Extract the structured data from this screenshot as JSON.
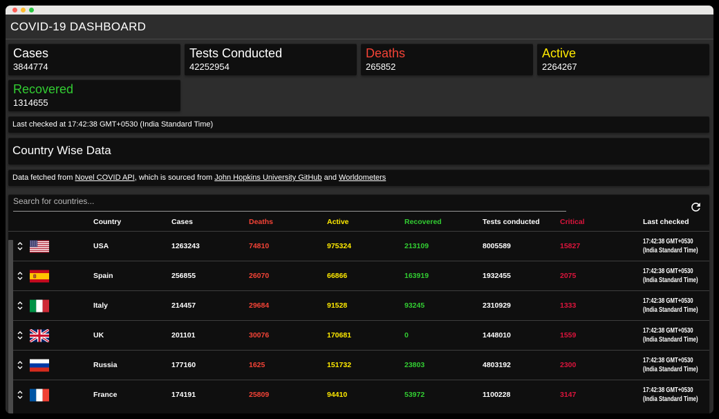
{
  "titlebar": {
    "dots": [
      {
        "name": "close",
        "color": "#ff5f57"
      },
      {
        "name": "minimize",
        "color": "#febc2e"
      },
      {
        "name": "zoom",
        "color": "#28c840"
      }
    ]
  },
  "header": {
    "title": "COVID-19 DASHBOARD"
  },
  "palette": {
    "red": "#f44336",
    "yellow": "#ffea00",
    "green": "#32cd32",
    "crimson": "#dc143c",
    "white": "#ffffff"
  },
  "stats": [
    {
      "id": "cases",
      "label": "Cases",
      "value": "3844774",
      "color": "#ffffff"
    },
    {
      "id": "tests",
      "label": "Tests Conducted",
      "value": "42252954",
      "color": "#ffffff"
    },
    {
      "id": "deaths",
      "label": "Deaths",
      "value": "265852",
      "color": "#f44336"
    },
    {
      "id": "active",
      "label": "Active",
      "value": "2264267",
      "color": "#ffea00"
    },
    {
      "id": "recovered",
      "label": "Recovered",
      "value": "1314655",
      "color": "#32cd32"
    }
  ],
  "last_checked_bar": {
    "text": "Last checked at 17:42:38 GMT+0530 (India Standard Time)"
  },
  "section": {
    "title": "Country Wise Data"
  },
  "source_note": {
    "segments": [
      {
        "text": "Data fetched from ",
        "link": false
      },
      {
        "text": "Novel COVID API",
        "link": true
      },
      {
        "text": ", which is sourced from ",
        "link": false
      },
      {
        "text": "John Hopkins University GitHub",
        "link": true
      },
      {
        "text": " and ",
        "link": false
      },
      {
        "text": "Worldometers",
        "link": true
      }
    ]
  },
  "table": {
    "search_placeholder": "Search for countries...",
    "refresh_icon": "refresh-icon",
    "columns": [
      {
        "key": "country",
        "label": "Country",
        "color": "#ffffff"
      },
      {
        "key": "cases",
        "label": "Cases",
        "color": "#ffffff"
      },
      {
        "key": "deaths",
        "label": "Deaths",
        "color": "#f44336"
      },
      {
        "key": "active",
        "label": "Active",
        "color": "#ffea00"
      },
      {
        "key": "recovered",
        "label": "Recovered",
        "color": "#32cd32"
      },
      {
        "key": "tests",
        "label": "Tests conducted",
        "color": "#ffffff"
      },
      {
        "key": "critical",
        "label": "Critical",
        "color": "#dc143c"
      },
      {
        "key": "last",
        "label": "Last checked",
        "color": "#ffffff"
      }
    ],
    "rows": [
      {
        "flag": "us",
        "country": "USA",
        "cases": "1263243",
        "deaths": "74810",
        "active": "975324",
        "recovered": "213109",
        "tests": "8005589",
        "critical": "15827",
        "last": "17:42:38 GMT+0530 (India Standard Time)"
      },
      {
        "flag": "es",
        "country": "Spain",
        "cases": "256855",
        "deaths": "26070",
        "active": "66866",
        "recovered": "163919",
        "tests": "1932455",
        "critical": "2075",
        "last": "17:42:38 GMT+0530 (India Standard Time)"
      },
      {
        "flag": "it",
        "country": "Italy",
        "cases": "214457",
        "deaths": "29684",
        "active": "91528",
        "recovered": "93245",
        "tests": "2310929",
        "critical": "1333",
        "last": "17:42:38 GMT+0530 (India Standard Time)"
      },
      {
        "flag": "gb",
        "country": "UK",
        "cases": "201101",
        "deaths": "30076",
        "active": "170681",
        "recovered": "0",
        "tests": "1448010",
        "critical": "1559",
        "last": "17:42:38 GMT+0530 (India Standard Time)"
      },
      {
        "flag": "ru",
        "country": "Russia",
        "cases": "177160",
        "deaths": "1625",
        "active": "151732",
        "recovered": "23803",
        "tests": "4803192",
        "critical": "2300",
        "last": "17:42:38 GMT+0530 (India Standard Time)"
      },
      {
        "flag": "fr",
        "country": "France",
        "cases": "174191",
        "deaths": "25809",
        "active": "94410",
        "recovered": "53972",
        "tests": "1100228",
        "critical": "3147",
        "last": "17:42:38 GMT+0530 (India Standard Time)"
      }
    ]
  }
}
